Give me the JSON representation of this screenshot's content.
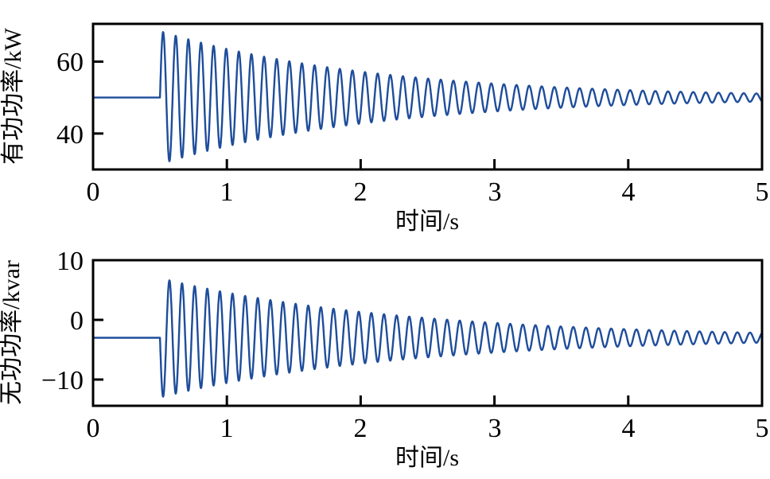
{
  "figure": {
    "background": "#ffffff",
    "axis_color": "#000000",
    "line_color": "#1e4d9b"
  },
  "chart_data": [
    {
      "type": "line",
      "title": "",
      "xlabel": "时间/s",
      "ylabel": "有功功率/kW",
      "xlim": [
        0,
        5
      ],
      "ylim": [
        30,
        70.5
      ],
      "xtick_values": [
        0,
        1,
        2,
        3,
        4,
        5
      ],
      "xtick_labels": [
        "0",
        "1",
        "2",
        "3",
        "4",
        "5"
      ],
      "ytick_values": [
        60,
        40
      ],
      "ytick_labels": [
        "60",
        "40"
      ],
      "grid": false,
      "legend": null,
      "line_color": "#1e4d9b",
      "series": [
        {
          "name": "有功功率",
          "model": "constant baseline, then exponentially damped sine after step",
          "baseline": 50,
          "step_time_s": 0.5,
          "initial_amplitude": 18.5,
          "decay_tau_s": 1.6,
          "frequency_hz": 10.6,
          "first_swing_direction": 1,
          "first_peak_value": 68.3,
          "first_trough_value": 32.3,
          "settle_value": 50
        }
      ]
    },
    {
      "type": "line",
      "title": "",
      "xlabel": "时间/s",
      "ylabel": "无功功率/kvar",
      "xlim": [
        0,
        5
      ],
      "ylim": [
        -14.4,
        10
      ],
      "xtick_values": [
        0,
        1,
        2,
        3,
        4,
        5
      ],
      "xtick_labels": [
        "0",
        "1",
        "2",
        "3",
        "4",
        "5"
      ],
      "ytick_values": [
        10,
        0,
        -10
      ],
      "ytick_labels": [
        "10",
        "0",
        "−10"
      ],
      "grid": false,
      "legend": null,
      "line_color": "#1e4d9b",
      "series": [
        {
          "name": "无功功率",
          "model": "constant baseline, then exponentially damped sine after step",
          "baseline": -3,
          "step_time_s": 0.5,
          "initial_amplitude": 10,
          "decay_tau_s": 1.8,
          "frequency_hz": 10.6,
          "first_swing_direction": -1,
          "first_peak_value": 6.6,
          "first_trough_value": -12.9,
          "settle_value": -3
        }
      ]
    }
  ]
}
